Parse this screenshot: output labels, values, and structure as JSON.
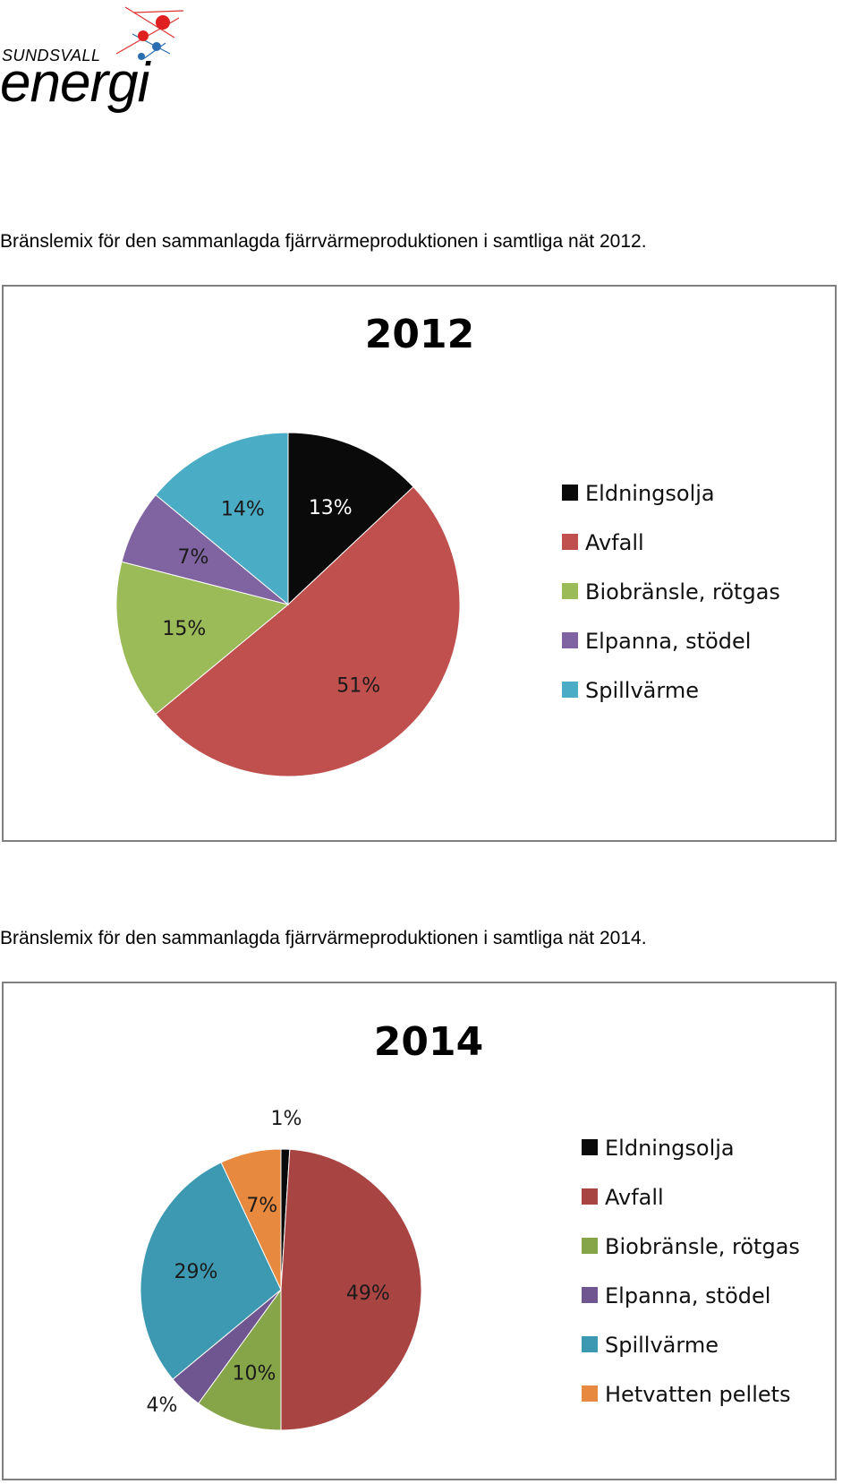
{
  "logo": {
    "top": "SUNDSVALL",
    "main": "energi"
  },
  "captions": [
    "Bränslemix för den sammanlagda fjärrvärmeproduktionen i samtliga nät 2012.",
    "Bränslemix för den sammanlagda fjärrvärmeproduktionen i samtliga nät 2014."
  ],
  "chart_data": [
    {
      "type": "pie",
      "title": "2012",
      "legend_position": "right",
      "series": [
        {
          "name": "Eldningsolja",
          "value": 13,
          "label": "13%",
          "color": "#0a0a0a",
          "label_color": "#ffffff"
        },
        {
          "name": "Avfall",
          "value": 51,
          "label": "51%",
          "color": "#c0504d",
          "label_color": "#1a1a1a"
        },
        {
          "name": "Biobränsle, rötgas",
          "value": 15,
          "label": "15%",
          "color": "#9bbb59",
          "label_color": "#1a1a1a"
        },
        {
          "name": "Elpanna, stödel",
          "value": 7,
          "label": "7%",
          "color": "#8064a2",
          "label_color": "#1a1a1a"
        },
        {
          "name": "Spillvärme",
          "value": 14,
          "label": "14%",
          "color": "#4bacc6",
          "label_color": "#1a1a1a"
        }
      ]
    },
    {
      "type": "pie",
      "title": "2014",
      "legend_position": "right",
      "series": [
        {
          "name": "Eldningsolja",
          "value": 1,
          "label": "1%",
          "color": "#0a0a0a",
          "label_color": "#1a1a1a"
        },
        {
          "name": "Avfall",
          "value": 49,
          "label": "49%",
          "color": "#a84543",
          "label_color": "#1a1a1a"
        },
        {
          "name": "Biobränsle, rötgas",
          "value": 10,
          "label": "10%",
          "color": "#86a549",
          "label_color": "#1a1a1a"
        },
        {
          "name": "Elpanna, stödel",
          "value": 4,
          "label": "4%",
          "color": "#6f5691",
          "label_color": "#1a1a1a"
        },
        {
          "name": "Spillvärme",
          "value": 29,
          "label": "29%",
          "color": "#3d99b1",
          "label_color": "#1a1a1a"
        },
        {
          "name": "Hetvatten pellets",
          "value": 7,
          "label": "7%",
          "color": "#e7893e",
          "label_color": "#1a1a1a"
        }
      ]
    }
  ]
}
